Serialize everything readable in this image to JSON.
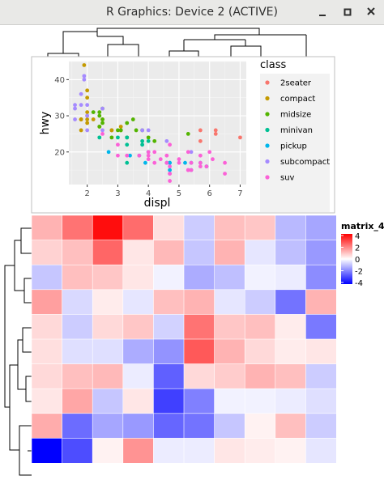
{
  "window": {
    "title": "R Graphics: Device 2 (ACTIVE)",
    "minimize_icon": "minimize-icon",
    "maximize_icon": "maximize-icon",
    "close_icon": "close-icon"
  },
  "scatter": {
    "chart_data": {
      "type": "scatter",
      "xlabel": "displ",
      "ylabel": "hwy",
      "xlim": [
        1.4,
        7.2
      ],
      "ylim": [
        11,
        45
      ],
      "x_ticks": [
        "2",
        "3",
        "4",
        "5",
        "6",
        "7"
      ],
      "y_ticks": [
        "20",
        "30",
        "40"
      ],
      "grid": true,
      "legend_title": "class",
      "legend_position": "right",
      "series": [
        {
          "name": "2seater",
          "color": "#F8766D",
          "points": [
            [
              5.7,
              26
            ],
            [
              5.7,
              23
            ],
            [
              6.2,
              26
            ],
            [
              6.2,
              25
            ],
            [
              7.0,
              24
            ]
          ]
        },
        {
          "name": "compact",
          "color": "#C49A00",
          "points": [
            [
              1.8,
              29
            ],
            [
              1.8,
              29
            ],
            [
              2.0,
              31
            ],
            [
              2.0,
              30
            ],
            [
              2.8,
              26
            ],
            [
              2.8,
              26
            ],
            [
              3.1,
              27
            ],
            [
              1.8,
              26
            ],
            [
              2.0,
              28
            ],
            [
              2.4,
              27
            ],
            [
              2.2,
              29
            ],
            [
              2.5,
              29
            ],
            [
              1.8,
              29
            ],
            [
              1.9,
              44
            ],
            [
              2.0,
              29
            ],
            [
              2.0,
              37
            ],
            [
              2.0,
              35
            ]
          ]
        },
        {
          "name": "midsize",
          "color": "#53B400",
          "points": [
            [
              2.4,
              27
            ],
            [
              2.4,
              30
            ],
            [
              3.1,
              26
            ],
            [
              3.5,
              29
            ],
            [
              3.6,
              26
            ],
            [
              2.5,
              28
            ],
            [
              2.5,
              29
            ],
            [
              3.0,
              26
            ],
            [
              3.3,
              24
            ],
            [
              3.8,
              26
            ],
            [
              4.0,
              24
            ],
            [
              5.3,
              25
            ],
            [
              2.8,
              24
            ],
            [
              3.3,
              28
            ],
            [
              3.1,
              26
            ],
            [
              4.2,
              23
            ],
            [
              2.2,
              31
            ],
            [
              2.4,
              31
            ],
            [
              2.5,
              32
            ]
          ]
        },
        {
          "name": "minivan",
          "color": "#00C094",
          "points": [
            [
              2.4,
              24
            ],
            [
              3.0,
              24
            ],
            [
              3.3,
              22
            ],
            [
              3.3,
              24
            ],
            [
              3.8,
              22
            ],
            [
              3.8,
              23
            ],
            [
              4.0,
              23
            ],
            [
              3.3,
              17
            ]
          ]
        },
        {
          "name": "pickup",
          "color": "#00B6EB",
          "points": [
            [
              3.7,
              19
            ],
            [
              3.9,
              17
            ],
            [
              4.7,
              17
            ],
            [
              4.7,
              17
            ],
            [
              5.2,
              17
            ],
            [
              5.7,
              17
            ],
            [
              5.9,
              16
            ],
            [
              2.7,
              20
            ],
            [
              3.4,
              19
            ],
            [
              4.0,
              20
            ],
            [
              4.7,
              15
            ],
            [
              5.4,
              15
            ],
            [
              4.6,
              17
            ],
            [
              5.4,
              17
            ]
          ]
        },
        {
          "name": "subcompact",
          "color": "#A58AFF",
          "points": [
            [
              1.6,
              33
            ],
            [
              1.6,
              32
            ],
            [
              1.8,
              36
            ],
            [
              2.0,
              26
            ],
            [
              1.6,
              29
            ],
            [
              1.8,
              33
            ],
            [
              1.9,
              41
            ],
            [
              1.9,
              40
            ],
            [
              2.0,
              33
            ],
            [
              2.0,
              30
            ],
            [
              2.5,
              32
            ],
            [
              2.5,
              26
            ],
            [
              3.8,
              26
            ],
            [
              4.6,
              23
            ],
            [
              5.4,
              20
            ],
            [
              4.0,
              26
            ]
          ]
        },
        {
          "name": "suv",
          "color": "#FB61D7",
          "points": [
            [
              5.3,
              20
            ],
            [
              5.3,
              15
            ],
            [
              5.7,
              19
            ],
            [
              6.5,
              17
            ],
            [
              6.0,
              20
            ],
            [
              4.6,
              17
            ],
            [
              5.0,
              18
            ],
            [
              5.4,
              17
            ],
            [
              4.0,
              18
            ],
            [
              4.7,
              16
            ],
            [
              5.7,
              16
            ],
            [
              6.1,
              18
            ],
            [
              3.7,
              19
            ],
            [
              4.7,
              14
            ],
            [
              4.7,
              12
            ],
            [
              5.4,
              15
            ],
            [
              2.5,
              25
            ],
            [
              3.0,
              22
            ],
            [
              3.3,
              19
            ],
            [
              4.2,
              17
            ],
            [
              4.4,
              18
            ],
            [
              4.6,
              19
            ],
            [
              4.0,
              20
            ],
            [
              4.2,
              20
            ],
            [
              5.0,
              17
            ],
            [
              5.7,
              17
            ],
            [
              5.9,
              16
            ],
            [
              5.3,
              15
            ],
            [
              6.5,
              14
            ],
            [
              3.0,
              19
            ],
            [
              4.0,
              19
            ],
            [
              4.7,
              22
            ],
            [
              4.7,
              14
            ]
          ]
        }
      ]
    }
  },
  "heatmap": {
    "chart_data": {
      "type": "heatmap",
      "legend_title": "matrix_4",
      "legend_ticks": [
        "4",
        "2",
        "0",
        "-2",
        "-4"
      ],
      "legend_range": [
        -4,
        4
      ],
      "colors": {
        "low": "#0000FF",
        "mid": "#FFFFFF",
        "high": "#FF0000"
      },
      "values": [
        [
          1.2,
          2.2,
          3.8,
          2.3,
          0.5,
          -0.8,
          1.0,
          0.9,
          -1.1,
          -1.4
        ],
        [
          0.7,
          1.0,
          2.4,
          0.4,
          1.1,
          -0.9,
          1.2,
          -0.4,
          -1.0,
          -1.6
        ],
        [
          -0.9,
          1.0,
          0.9,
          0.4,
          -0.2,
          -1.3,
          -1.0,
          -0.2,
          -0.3,
          -1.8
        ],
        [
          1.5,
          -0.6,
          0.3,
          -0.4,
          1.0,
          1.2,
          -0.4,
          -0.8,
          -2.2,
          1.2
        ],
        [
          0.6,
          -0.8,
          0.6,
          0.9,
          -0.7,
          2.2,
          0.9,
          1.0,
          0.3,
          -2.1
        ],
        [
          0.5,
          -0.5,
          -0.5,
          -1.3,
          -1.7,
          2.6,
          1.2,
          0.6,
          0.3,
          0.4
        ],
        [
          0.6,
          1.0,
          1.1,
          -0.3,
          -2.5,
          0.6,
          0.8,
          1.2,
          1.0,
          -0.8
        ],
        [
          0.4,
          1.4,
          -0.9,
          0.4,
          -3.0,
          -2.0,
          -0.2,
          -0.2,
          -0.3,
          -0.5
        ],
        [
          1.3,
          -2.3,
          -1.4,
          -1.6,
          -2.4,
          -2.2,
          -0.9,
          0.2,
          1.0,
          -0.8
        ],
        [
          -4.0,
          -2.8,
          0.2,
          1.7,
          -0.3,
          -0.3,
          0.4,
          0.3,
          0.2,
          -0.4
        ]
      ]
    }
  }
}
